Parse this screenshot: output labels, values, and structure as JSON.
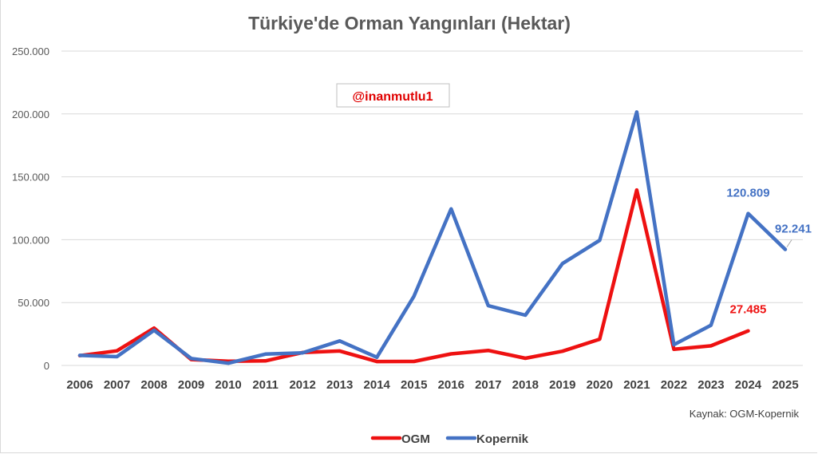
{
  "chart_data": {
    "type": "line",
    "title": "Türkiye'de Orman Yangınları (Hektar)",
    "categories": [
      "2006",
      "2007",
      "2008",
      "2009",
      "2010",
      "2011",
      "2012",
      "2013",
      "2014",
      "2015",
      "2016",
      "2017",
      "2018",
      "2019",
      "2020",
      "2021",
      "2022",
      "2023",
      "2024",
      "2025"
    ],
    "ylim": [
      0,
      250000
    ],
    "y_ticks": [
      0,
      50000,
      100000,
      150000,
      200000,
      250000
    ],
    "y_tick_labels": [
      "0",
      "50.000",
      "100.000",
      "150.000",
      "200.000",
      "250.000"
    ],
    "grid": true,
    "legend_position": "bottom",
    "series": [
      {
        "name": "OGM",
        "color": "#ee1111",
        "values": [
          7800,
          11600,
          29700,
          4700,
          3300,
          3600,
          10300,
          11500,
          3100,
          3200,
          9200,
          11900,
          5700,
          11300,
          20900,
          139500,
          12800,
          15600,
          27485,
          null
        ]
      },
      {
        "name": "Kopernik",
        "color": "#4472c4",
        "values": [
          8000,
          7000,
          28000,
          5500,
          1800,
          9000,
          10000,
          19500,
          6500,
          55000,
          124500,
          47500,
          40000,
          81000,
          99500,
          201500,
          16500,
          32000,
          120809,
          92241
        ]
      }
    ],
    "annotations": [
      {
        "series": 0,
        "index": 18,
        "text": "27.485"
      },
      {
        "series": 1,
        "index": 18,
        "text": "120.809"
      },
      {
        "series": 1,
        "index": 19,
        "text": "92.241"
      }
    ]
  },
  "watermark": "@inanmutlu1",
  "source": "Kaynak: OGM-Kopernik"
}
